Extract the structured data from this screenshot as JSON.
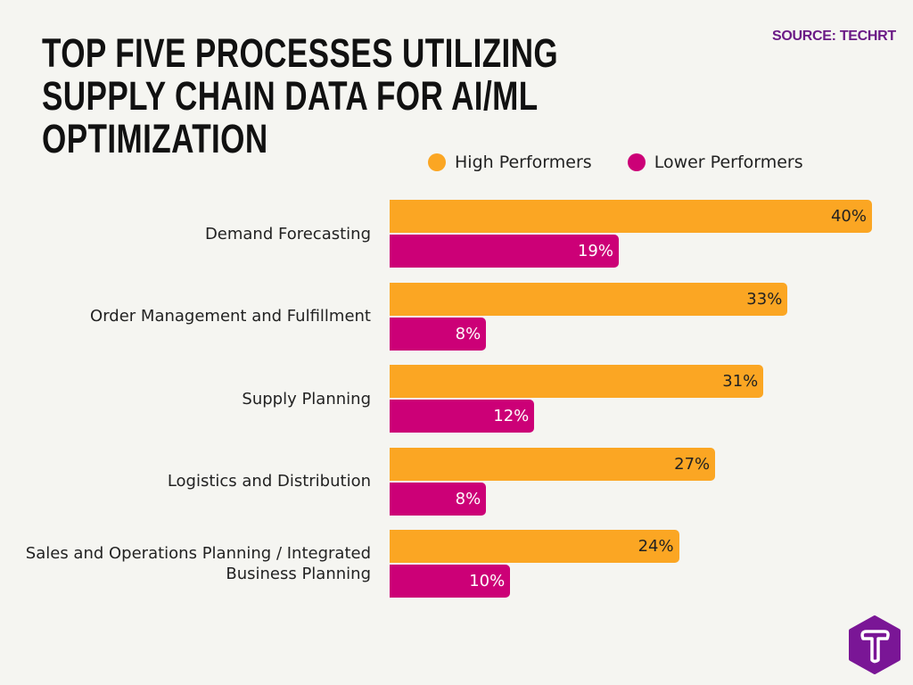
{
  "title": "TOP FIVE PROCESSES UTILIZING SUPPLY CHAIN DATA FOR AI/ML OPTIMIZATION",
  "source": "SOURCE: TECHRT",
  "logo_text": "T",
  "chart_data": {
    "type": "bar",
    "orientation": "horizontal",
    "categories": [
      "Demand Forecasting",
      "Order Management and Fulfillment",
      "Supply Planning",
      "Logistics and Distribution",
      "Sales and Operations Planning / Integrated Business Planning"
    ],
    "series": [
      {
        "name": "High Performers",
        "values": [
          40,
          33,
          31,
          27,
          24
        ],
        "color": "#fba623",
        "label_color": "#222222"
      },
      {
        "name": "Lower Performers",
        "values": [
          19,
          8,
          12,
          8,
          10
        ],
        "color": "#cc0077",
        "label_color": "#ffffff"
      }
    ],
    "value_suffix": "%",
    "xlim": [
      0,
      40
    ],
    "grid": false,
    "legend": "top"
  }
}
